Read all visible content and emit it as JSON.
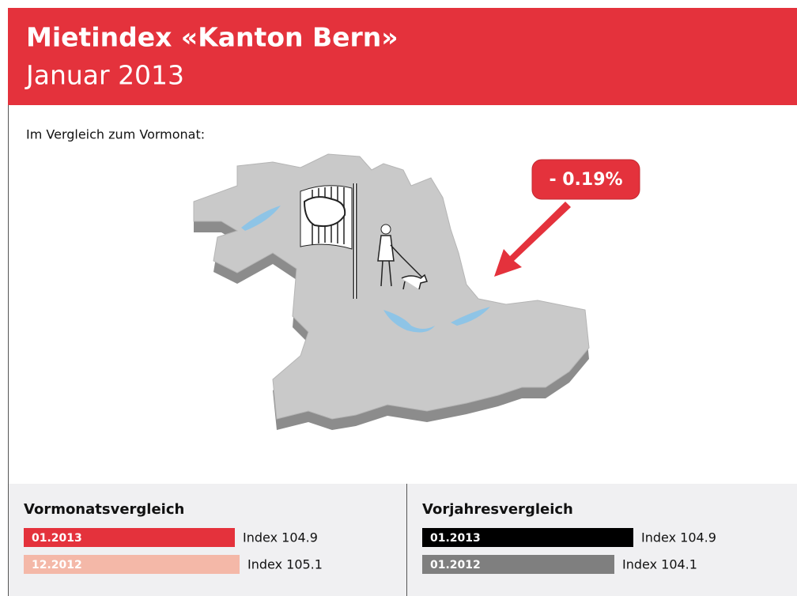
{
  "header": {
    "title": "Mietindex «Kanton Bern»",
    "subtitle": "Januar 2013"
  },
  "intro": "Im Vergleich zum Vormonat:",
  "change": {
    "value": -0.19,
    "label": "- 0.19%",
    "color": "#e4323c"
  },
  "panels": [
    {
      "title": "Vormonatsvergleich",
      "rows": [
        {
          "period": "01.2013",
          "value": 104.9,
          "label": "Index 104.9",
          "color": "#e4323c"
        },
        {
          "period": "12.2012",
          "value": 105.1,
          "label": "Index 105.1",
          "color": "#f4b8a8"
        }
      ]
    },
    {
      "title": "Vorjahresvergleich",
      "rows": [
        {
          "period": "01.2013",
          "value": 104.9,
          "label": "Index 104.9",
          "color": "#000000"
        },
        {
          "period": "01.2012",
          "value": 104.1,
          "label": "Index 104.1",
          "color": "#7f7f7f"
        }
      ]
    }
  ]
}
